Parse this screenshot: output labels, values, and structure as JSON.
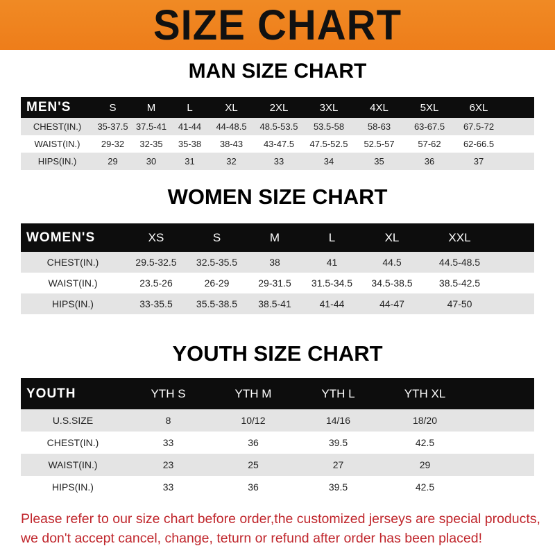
{
  "banner": {
    "title": "SIZE CHART",
    "color": "#ef8320"
  },
  "men": {
    "title": "MAN SIZE CHART",
    "header": [
      "MEN'S",
      "S",
      "M",
      "L",
      "XL",
      "2XL",
      "3XL",
      "4XL",
      "5XL",
      "6XL"
    ],
    "rows": [
      [
        "CHEST(IN.)",
        "35-37.5",
        "37.5-41",
        "41-44",
        "44-48.5",
        "48.5-53.5",
        "53.5-58",
        "58-63",
        "63-67.5",
        "67.5-72"
      ],
      [
        "WAIST(IN.)",
        "29-32",
        "32-35",
        "35-38",
        "38-43",
        "43-47.5",
        "47.5-52.5",
        "52.5-57",
        "57-62",
        "62-66.5"
      ],
      [
        "HIPS(IN.)",
        "29",
        "30",
        "31",
        "32",
        "33",
        "34",
        "35",
        "36",
        "37"
      ]
    ]
  },
  "women": {
    "title": "WOMEN SIZE CHART",
    "header": [
      "WOMEN'S",
      "XS",
      "S",
      "M",
      "L",
      "XL",
      "XXL"
    ],
    "rows": [
      [
        "CHEST(IN.)",
        "29.5-32.5",
        "32.5-35.5",
        "38",
        "41",
        "44.5",
        "44.5-48.5"
      ],
      [
        "WAIST(IN.)",
        "23.5-26",
        "26-29",
        "29-31.5",
        "31.5-34.5",
        "34.5-38.5",
        "38.5-42.5"
      ],
      [
        "HIPS(IN.)",
        "33-35.5",
        "35.5-38.5",
        "38.5-41",
        "41-44",
        "44-47",
        "47-50"
      ]
    ]
  },
  "youth": {
    "title": "YOUTH SIZE CHART",
    "header": [
      "YOUTH",
      "YTH S",
      "YTH M",
      "YTH L",
      "YTH XL"
    ],
    "rows": [
      [
        "U.S.SIZE",
        "8",
        "10/12",
        "14/16",
        "18/20"
      ],
      [
        "CHEST(IN.)",
        "33",
        "36",
        "39.5",
        "42.5"
      ],
      [
        "WAIST(IN.)",
        "23",
        "25",
        "27",
        "29"
      ],
      [
        "HIPS(IN.)",
        "33",
        "36",
        "39.5",
        "42.5"
      ]
    ]
  },
  "notice": {
    "line1": "Please refer to our size chart before order,the customized jerseys are special products,",
    "line2": "we don't accept cancel, change, teturn or refund after order has been placed!",
    "color": "#c0262c"
  }
}
